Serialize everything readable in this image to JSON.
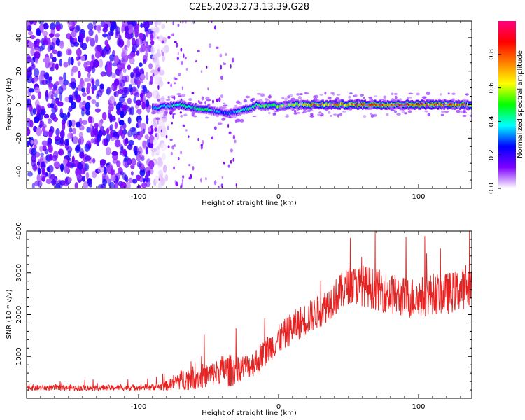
{
  "figure": {
    "title": "C2E5.2023.273.13.39.G28"
  },
  "chart_data": [
    {
      "type": "heatmap",
      "title": "C2E5.2023.273.13.39.G28",
      "xlabel": "Height of straight line (km)",
      "ylabel": "Frequency (Hz)",
      "xlim": [
        -180,
        138
      ],
      "ylim": [
        -50,
        50
      ],
      "x_ticks": [
        -100,
        0,
        100
      ],
      "x_tick_labels": [
        "-100",
        "0",
        "100"
      ],
      "y_ticks": [
        -40,
        -20,
        0,
        20,
        40
      ],
      "y_tick_labels": [
        "-40",
        "-20",
        "0",
        "20",
        "40"
      ],
      "colorbar": {
        "label": "Normalized spectral amplitude",
        "range": [
          0,
          1
        ],
        "ticks": [
          0.0,
          0.2,
          0.4,
          0.6,
          0.8
        ],
        "tick_labels": [
          "0.0",
          "0.2",
          "0.4",
          "0.6",
          "0.8"
        ],
        "colors": [
          "#ffffff",
          "#7f00ff",
          "#0000ff",
          "#00ffff",
          "#00ff00",
          "#ffff00",
          "#ff8000",
          "#ff0000",
          "#ff0080"
        ]
      },
      "noise_region": {
        "x_range": [
          -180,
          -90
        ],
        "mean_amplitude": 0.2
      },
      "signal_ridge": {
        "x": [
          -90,
          -80,
          -70,
          -60,
          -50,
          -45,
          -40,
          -35,
          -30,
          -25,
          -20,
          -15,
          -10,
          -5,
          0,
          10,
          20,
          30,
          40,
          50,
          60,
          70,
          80,
          90,
          100,
          110,
          120,
          130,
          138
        ],
        "frequency": [
          -2,
          -1,
          0,
          -2,
          -3,
          -4,
          -5,
          -5,
          -4,
          -3,
          -2,
          0,
          -1,
          0,
          -1,
          0,
          0,
          0,
          0,
          0,
          0,
          0,
          0,
          0,
          0,
          0,
          0,
          0,
          0
        ],
        "amplitude": [
          0.35,
          0.4,
          0.45,
          0.45,
          0.45,
          0.35,
          0.3,
          0.3,
          0.35,
          0.4,
          0.45,
          0.5,
          0.55,
          0.55,
          0.6,
          0.6,
          0.7,
          0.7,
          0.75,
          0.75,
          0.85,
          0.85,
          0.85,
          0.85,
          0.85,
          0.8,
          0.8,
          0.75,
          0.7
        ]
      }
    },
    {
      "type": "line",
      "xlabel": "Height of straight line (km)",
      "ylabel": "SNR (10 * v/v)",
      "xlim": [
        -180,
        138
      ],
      "ylim": [
        0,
        4000
      ],
      "x_ticks": [
        -100,
        0,
        100
      ],
      "x_tick_labels": [
        "-100",
        "0",
        "100"
      ],
      "y_ticks": [
        1000,
        2000,
        3000,
        4000
      ],
      "y_tick_labels": [
        "1000",
        "2000",
        "3000",
        "4000"
      ],
      "color": "#e8201f",
      "series": [
        {
          "x": [
            -180,
            -160,
            -140,
            -120,
            -100,
            -90,
            -80,
            -70,
            -60,
            -50,
            -45,
            -40,
            -35,
            -30,
            -25,
            -20,
            -15,
            -10,
            0,
            10,
            20,
            30,
            40,
            50,
            60,
            70,
            80,
            90,
            100,
            110,
            120,
            130,
            138
          ],
          "mean": [
            250,
            250,
            250,
            250,
            260,
            270,
            300,
            450,
            500,
            550,
            600,
            700,
            650,
            700,
            750,
            800,
            900,
            1100,
            1400,
            1700,
            1900,
            2100,
            2400,
            2700,
            2700,
            2600,
            2500,
            2400,
            2400,
            2500,
            2500,
            2600,
            2700
          ],
          "spread": [
            70,
            70,
            70,
            70,
            70,
            80,
            120,
            250,
            300,
            300,
            300,
            350,
            400,
            350,
            300,
            300,
            350,
            350,
            350,
            400,
            400,
            400,
            450,
            450,
            500,
            500,
            500,
            500,
            500,
            500,
            500,
            500,
            500
          ]
        }
      ]
    }
  ]
}
